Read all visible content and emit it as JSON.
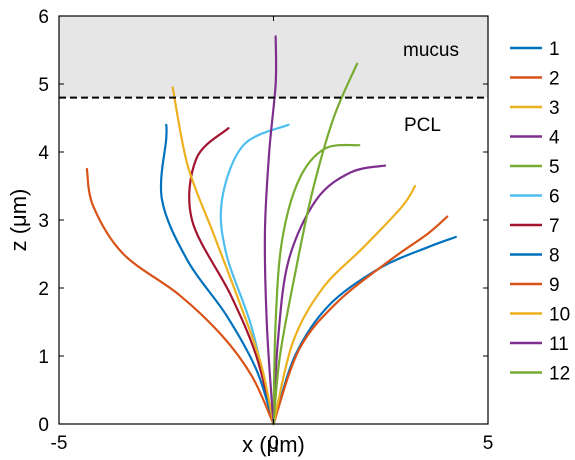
{
  "chart_data": {
    "type": "line",
    "title": "",
    "xlabel": "x (μm)",
    "ylabel": "z (μm)",
    "xlim": [
      -5,
      5
    ],
    "ylim": [
      0,
      6
    ],
    "xticks": [
      "-5",
      "0",
      "5"
    ],
    "yticks": [
      "0",
      "1",
      "2",
      "3",
      "4",
      "5",
      "6"
    ],
    "grid": false,
    "legend_position": "right-outside",
    "annotations": {
      "region_label_top": "mucus",
      "region_label_bottom": "PCL",
      "boundary_z": 4.8,
      "region_fill_color": "#e6e6e6"
    },
    "series": [
      {
        "name": "1",
        "color": "#0072BD",
        "points": [
          [
            0,
            0
          ],
          [
            0.5,
            1
          ],
          [
            1.3,
            1.75
          ],
          [
            2.5,
            2.3
          ],
          [
            3.6,
            2.6
          ],
          [
            4.25,
            2.75
          ]
        ]
      },
      {
        "name": "2",
        "color": "#D95319",
        "points": [
          [
            0,
            0
          ],
          [
            0.6,
            1.1
          ],
          [
            1.5,
            1.8
          ],
          [
            2.7,
            2.4
          ],
          [
            3.6,
            2.8
          ],
          [
            4.05,
            3.05
          ]
        ]
      },
      {
        "name": "3",
        "color": "#EDB120",
        "points": [
          [
            0,
            0
          ],
          [
            0.45,
            1.2
          ],
          [
            1.15,
            2.0
          ],
          [
            2.1,
            2.6
          ],
          [
            3.0,
            3.2
          ],
          [
            3.3,
            3.5
          ]
        ]
      },
      {
        "name": "4",
        "color": "#7E2F8E",
        "points": [
          [
            0,
            0
          ],
          [
            0.1,
            1.2
          ],
          [
            0.35,
            2.4
          ],
          [
            1.0,
            3.3
          ],
          [
            1.8,
            3.7
          ],
          [
            2.6,
            3.8
          ]
        ]
      },
      {
        "name": "5",
        "color": "#77AC30",
        "points": [
          [
            0,
            0
          ],
          [
            0.05,
            1.5
          ],
          [
            0.2,
            2.7
          ],
          [
            0.6,
            3.6
          ],
          [
            1.2,
            4.05
          ],
          [
            2.0,
            4.1
          ]
        ]
      },
      {
        "name": "6",
        "color": "#4DBEEE",
        "points": [
          [
            0,
            0
          ],
          [
            -0.5,
            1.4
          ],
          [
            -1.1,
            2.5
          ],
          [
            -1.2,
            3.3
          ],
          [
            -0.7,
            4.1
          ],
          [
            0.35,
            4.4
          ]
        ]
      },
      {
        "name": "7",
        "color": "#A2142F",
        "points": [
          [
            0,
            0
          ],
          [
            -0.4,
            1.0
          ],
          [
            -1.0,
            1.9
          ],
          [
            -1.9,
            3.0
          ],
          [
            -1.8,
            3.9
          ],
          [
            -1.05,
            4.35
          ]
        ]
      },
      {
        "name": "8",
        "color": "#0072BD",
        "points": [
          [
            0,
            0
          ],
          [
            -0.4,
            0.8
          ],
          [
            -1.1,
            1.6
          ],
          [
            -2.0,
            2.4
          ],
          [
            -2.6,
            3.3
          ],
          [
            -2.5,
            4.2
          ],
          [
            -2.5,
            4.4
          ]
        ]
      },
      {
        "name": "9",
        "color": "#D95319",
        "points": [
          [
            0,
            0
          ],
          [
            -0.5,
            0.7
          ],
          [
            -1.2,
            1.3
          ],
          [
            -2.2,
            1.9
          ],
          [
            -3.5,
            2.5
          ],
          [
            -4.2,
            3.2
          ],
          [
            -4.35,
            3.75
          ]
        ]
      },
      {
        "name": "10",
        "color": "#EDB120",
        "points": [
          [
            0,
            0
          ],
          [
            -0.3,
            0.9
          ],
          [
            -0.8,
            1.8
          ],
          [
            -1.4,
            2.8
          ],
          [
            -2.0,
            3.8
          ],
          [
            -2.35,
            4.95
          ]
        ]
      },
      {
        "name": "11",
        "color": "#7E2F8E",
        "points": [
          [
            0,
            0
          ],
          [
            -0.15,
            1.4
          ],
          [
            -0.2,
            2.8
          ],
          [
            -0.1,
            4.0
          ],
          [
            0.05,
            5.0
          ],
          [
            0.05,
            5.7
          ]
        ]
      },
      {
        "name": "12",
        "color": "#77AC30",
        "points": [
          [
            0,
            0
          ],
          [
            0.15,
            1.0
          ],
          [
            0.5,
            2.2
          ],
          [
            0.9,
            3.4
          ],
          [
            1.4,
            4.5
          ],
          [
            1.95,
            5.3
          ]
        ]
      }
    ]
  }
}
